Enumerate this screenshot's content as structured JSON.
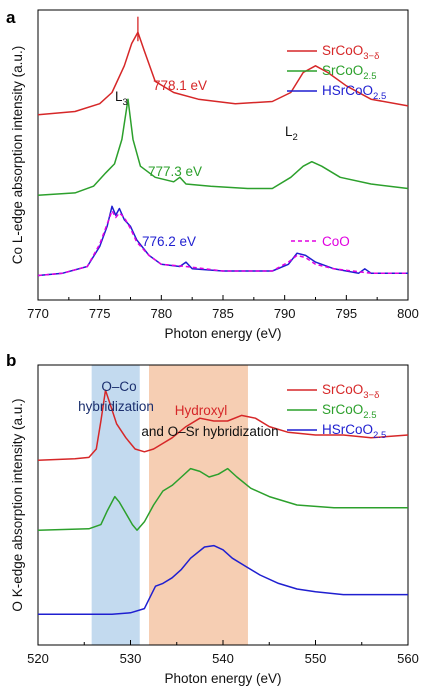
{
  "chart_data": [
    {
      "type": "line",
      "panel": "a",
      "xlabel": "Photon energy (eV)",
      "ylabel": "Co L-edge absorption intensity (a.u.)",
      "xlim": [
        770,
        800
      ],
      "xticks": [
        "770",
        "775",
        "780",
        "785",
        "790",
        "795",
        "800"
      ],
      "legend_position": "top-right",
      "series": [
        {
          "name": "SrCoO3−δ",
          "color": "#d62728",
          "points": [
            [
              770,
              0.83
            ],
            [
              773,
              0.845
            ],
            [
              775,
              0.88
            ],
            [
              776,
              0.93
            ],
            [
              777,
              1.05
            ],
            [
              777.6,
              1.15
            ],
            [
              778.1,
              1.2
            ],
            [
              778.6,
              1.12
            ],
            [
              779.5,
              0.98
            ],
            [
              781,
              0.93
            ],
            [
              783,
              0.9
            ],
            [
              786,
              0.88
            ],
            [
              789,
              0.89
            ],
            [
              790.5,
              0.93
            ],
            [
              791.5,
              1.02
            ],
            [
              792.5,
              1.05
            ],
            [
              793.5,
              1.02
            ],
            [
              795,
              0.96
            ],
            [
              797,
              0.9
            ],
            [
              800,
              0.87
            ]
          ]
        },
        {
          "name": "SrCoO2.5",
          "color": "#2ca02c",
          "points": [
            [
              770,
              0.47
            ],
            [
              773,
              0.48
            ],
            [
              774.5,
              0.51
            ],
            [
              775.5,
              0.57
            ],
            [
              776.2,
              0.61
            ],
            [
              776.8,
              0.72
            ],
            [
              777.3,
              0.9
            ],
            [
              777.7,
              0.72
            ],
            [
              778.3,
              0.6
            ],
            [
              779.5,
              0.55
            ],
            [
              781,
              0.53
            ],
            [
              781.5,
              0.55
            ],
            [
              782,
              0.52
            ],
            [
              784,
              0.51
            ],
            [
              787,
              0.5
            ],
            [
              789,
              0.5
            ],
            [
              790.5,
              0.55
            ],
            [
              791.5,
              0.6
            ],
            [
              792.2,
              0.62
            ],
            [
              793,
              0.6
            ],
            [
              794.5,
              0.55
            ],
            [
              797,
              0.52
            ],
            [
              800,
              0.5
            ]
          ]
        },
        {
          "name": "HSrCoO2.5",
          "color": "#1f1fd0",
          "points": [
            [
              770,
              0.11
            ],
            [
              772,
              0.12
            ],
            [
              774,
              0.15
            ],
            [
              775,
              0.24
            ],
            [
              775.6,
              0.33
            ],
            [
              776,
              0.42
            ],
            [
              776.3,
              0.38
            ],
            [
              776.6,
              0.41
            ],
            [
              777,
              0.36
            ],
            [
              777.5,
              0.33
            ],
            [
              778,
              0.27
            ],
            [
              779,
              0.2
            ],
            [
              780,
              0.16
            ],
            [
              781.5,
              0.15
            ],
            [
              782,
              0.17
            ],
            [
              782.5,
              0.14
            ],
            [
              785,
              0.13
            ],
            [
              789,
              0.13
            ],
            [
              790.3,
              0.16
            ],
            [
              791,
              0.21
            ],
            [
              791.7,
              0.2
            ],
            [
              792.5,
              0.17
            ],
            [
              794,
              0.14
            ],
            [
              796,
              0.12
            ],
            [
              796.5,
              0.14
            ],
            [
              797,
              0.12
            ],
            [
              800,
              0.12
            ]
          ]
        },
        {
          "name": "CoO",
          "color": "#e000e0",
          "dashed": true,
          "points": [
            [
              770,
              0.11
            ],
            [
              772,
              0.12
            ],
            [
              774,
              0.15
            ],
            [
              775,
              0.25
            ],
            [
              775.6,
              0.34
            ],
            [
              776,
              0.4
            ],
            [
              776.3,
              0.37
            ],
            [
              776.6,
              0.39
            ],
            [
              777,
              0.37
            ],
            [
              777.5,
              0.32
            ],
            [
              778,
              0.26
            ],
            [
              779,
              0.2
            ],
            [
              780,
              0.16
            ],
            [
              782,
              0.15
            ],
            [
              785,
              0.13
            ],
            [
              789,
              0.13
            ],
            [
              790.3,
              0.17
            ],
            [
              791,
              0.2
            ],
            [
              791.7,
              0.19
            ],
            [
              792.5,
              0.16
            ],
            [
              794,
              0.14
            ],
            [
              797,
              0.12
            ],
            [
              800,
              0.12
            ]
          ]
        }
      ],
      "annotations": [
        {
          "text": "778.1 eV",
          "x": 778.1,
          "color": "#d62728"
        },
        {
          "text": "777.3 eV",
          "x": 777.3,
          "color": "#2ca02c"
        },
        {
          "text": "776.2 eV",
          "x": 776.2,
          "color": "#1f1fd0"
        },
        {
          "text": "L3",
          "color": "#111"
        },
        {
          "text": "L2",
          "color": "#111"
        }
      ]
    },
    {
      "type": "line",
      "panel": "b",
      "xlabel": "Photon energy (eV)",
      "ylabel": "O K-edge absorption intensity (a.u.)",
      "xlim": [
        520,
        560
      ],
      "xticks": [
        "520",
        "530",
        "540",
        "550",
        "560"
      ],
      "legend_position": "top-right",
      "shaded_regions": [
        {
          "label": "O–Co hybridization",
          "x_range": [
            525.8,
            531
          ],
          "color": "#b8d3ec"
        },
        {
          "label_line1": "Hydroxyl",
          "label_line2": "and O–Sr hybridization",
          "x_range": [
            532,
            542.7
          ],
          "color": "#f5c6a6"
        }
      ],
      "series": [
        {
          "name": "SrCoO3−δ",
          "color": "#d62728",
          "points": [
            [
              520,
              0.66
            ],
            [
              524,
              0.665
            ],
            [
              525.5,
              0.67
            ],
            [
              526.3,
              0.7
            ],
            [
              526.8,
              0.8
            ],
            [
              527.3,
              0.91
            ],
            [
              527.9,
              0.85
            ],
            [
              528.5,
              0.79
            ],
            [
              529.5,
              0.74
            ],
            [
              530.5,
              0.7
            ],
            [
              531.5,
              0.69
            ],
            [
              532.5,
              0.7
            ],
            [
              533.5,
              0.72
            ],
            [
              534.5,
              0.74
            ],
            [
              536,
              0.78
            ],
            [
              537.5,
              0.81
            ],
            [
              539,
              0.8
            ],
            [
              540.5,
              0.8
            ],
            [
              542,
              0.82
            ],
            [
              543.5,
              0.81
            ],
            [
              545,
              0.78
            ],
            [
              547,
              0.76
            ],
            [
              550,
              0.75
            ],
            [
              553,
              0.75
            ],
            [
              556,
              0.74
            ],
            [
              560,
              0.75
            ]
          ]
        },
        {
          "name": "SrCoO2.5",
          "color": "#2ca02c",
          "points": [
            [
              520,
              0.41
            ],
            [
              525.5,
              0.415
            ],
            [
              526.8,
              0.43
            ],
            [
              527.5,
              0.48
            ],
            [
              528.3,
              0.53
            ],
            [
              528.8,
              0.51
            ],
            [
              529.5,
              0.47
            ],
            [
              530.2,
              0.43
            ],
            [
              530.7,
              0.41
            ],
            [
              531.5,
              0.44
            ],
            [
              532.5,
              0.5
            ],
            [
              533.5,
              0.55
            ],
            [
              534.5,
              0.57
            ],
            [
              535.5,
              0.6
            ],
            [
              536.5,
              0.63
            ],
            [
              537.5,
              0.62
            ],
            [
              538.5,
              0.6
            ],
            [
              539.5,
              0.61
            ],
            [
              540.5,
              0.63
            ],
            [
              541.5,
              0.6
            ],
            [
              543,
              0.56
            ],
            [
              545,
              0.53
            ],
            [
              548,
              0.5
            ],
            [
              552,
              0.49
            ],
            [
              556,
              0.49
            ],
            [
              560,
              0.49
            ]
          ]
        },
        {
          "name": "HSrCoO2.5",
          "color": "#1f1fd0",
          "points": [
            [
              520,
              0.11
            ],
            [
              528,
              0.11
            ],
            [
              530,
              0.115
            ],
            [
              531.5,
              0.13
            ],
            [
              532.1,
              0.17
            ],
            [
              532.7,
              0.21
            ],
            [
              533.5,
              0.22
            ],
            [
              534.5,
              0.24
            ],
            [
              535.5,
              0.27
            ],
            [
              536.5,
              0.31
            ],
            [
              538,
              0.35
            ],
            [
              539,
              0.355
            ],
            [
              540,
              0.34
            ],
            [
              541,
              0.31
            ],
            [
              542.5,
              0.28
            ],
            [
              544,
              0.25
            ],
            [
              546,
              0.22
            ],
            [
              548,
              0.2
            ],
            [
              550,
              0.19
            ],
            [
              553,
              0.18
            ],
            [
              556,
              0.18
            ],
            [
              560,
              0.18
            ]
          ]
        }
      ]
    }
  ]
}
